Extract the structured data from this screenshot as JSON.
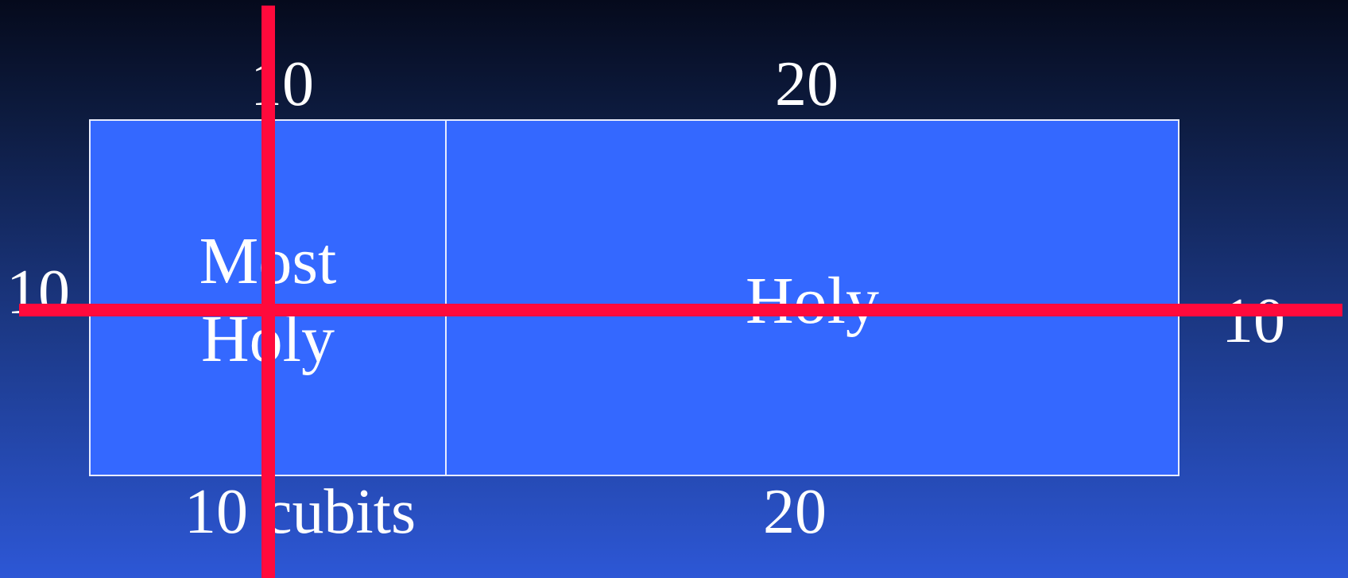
{
  "dimensions": {
    "top_left": "10",
    "top_right": "20",
    "left_side": "10",
    "right_side": "10",
    "bottom_left": "10 cubits",
    "bottom_right": "20"
  },
  "rooms": {
    "most_holy": {
      "line1": "Most",
      "line2": "Holy"
    },
    "holy": {
      "label": "Holy"
    }
  },
  "colors": {
    "room_fill": "#3468ff",
    "room_border": "#e8ecff",
    "cross_lines": "#ff0a3c",
    "text": "#ffffff",
    "background_top": "#050a1c",
    "background_bottom": "#2d57d6"
  }
}
